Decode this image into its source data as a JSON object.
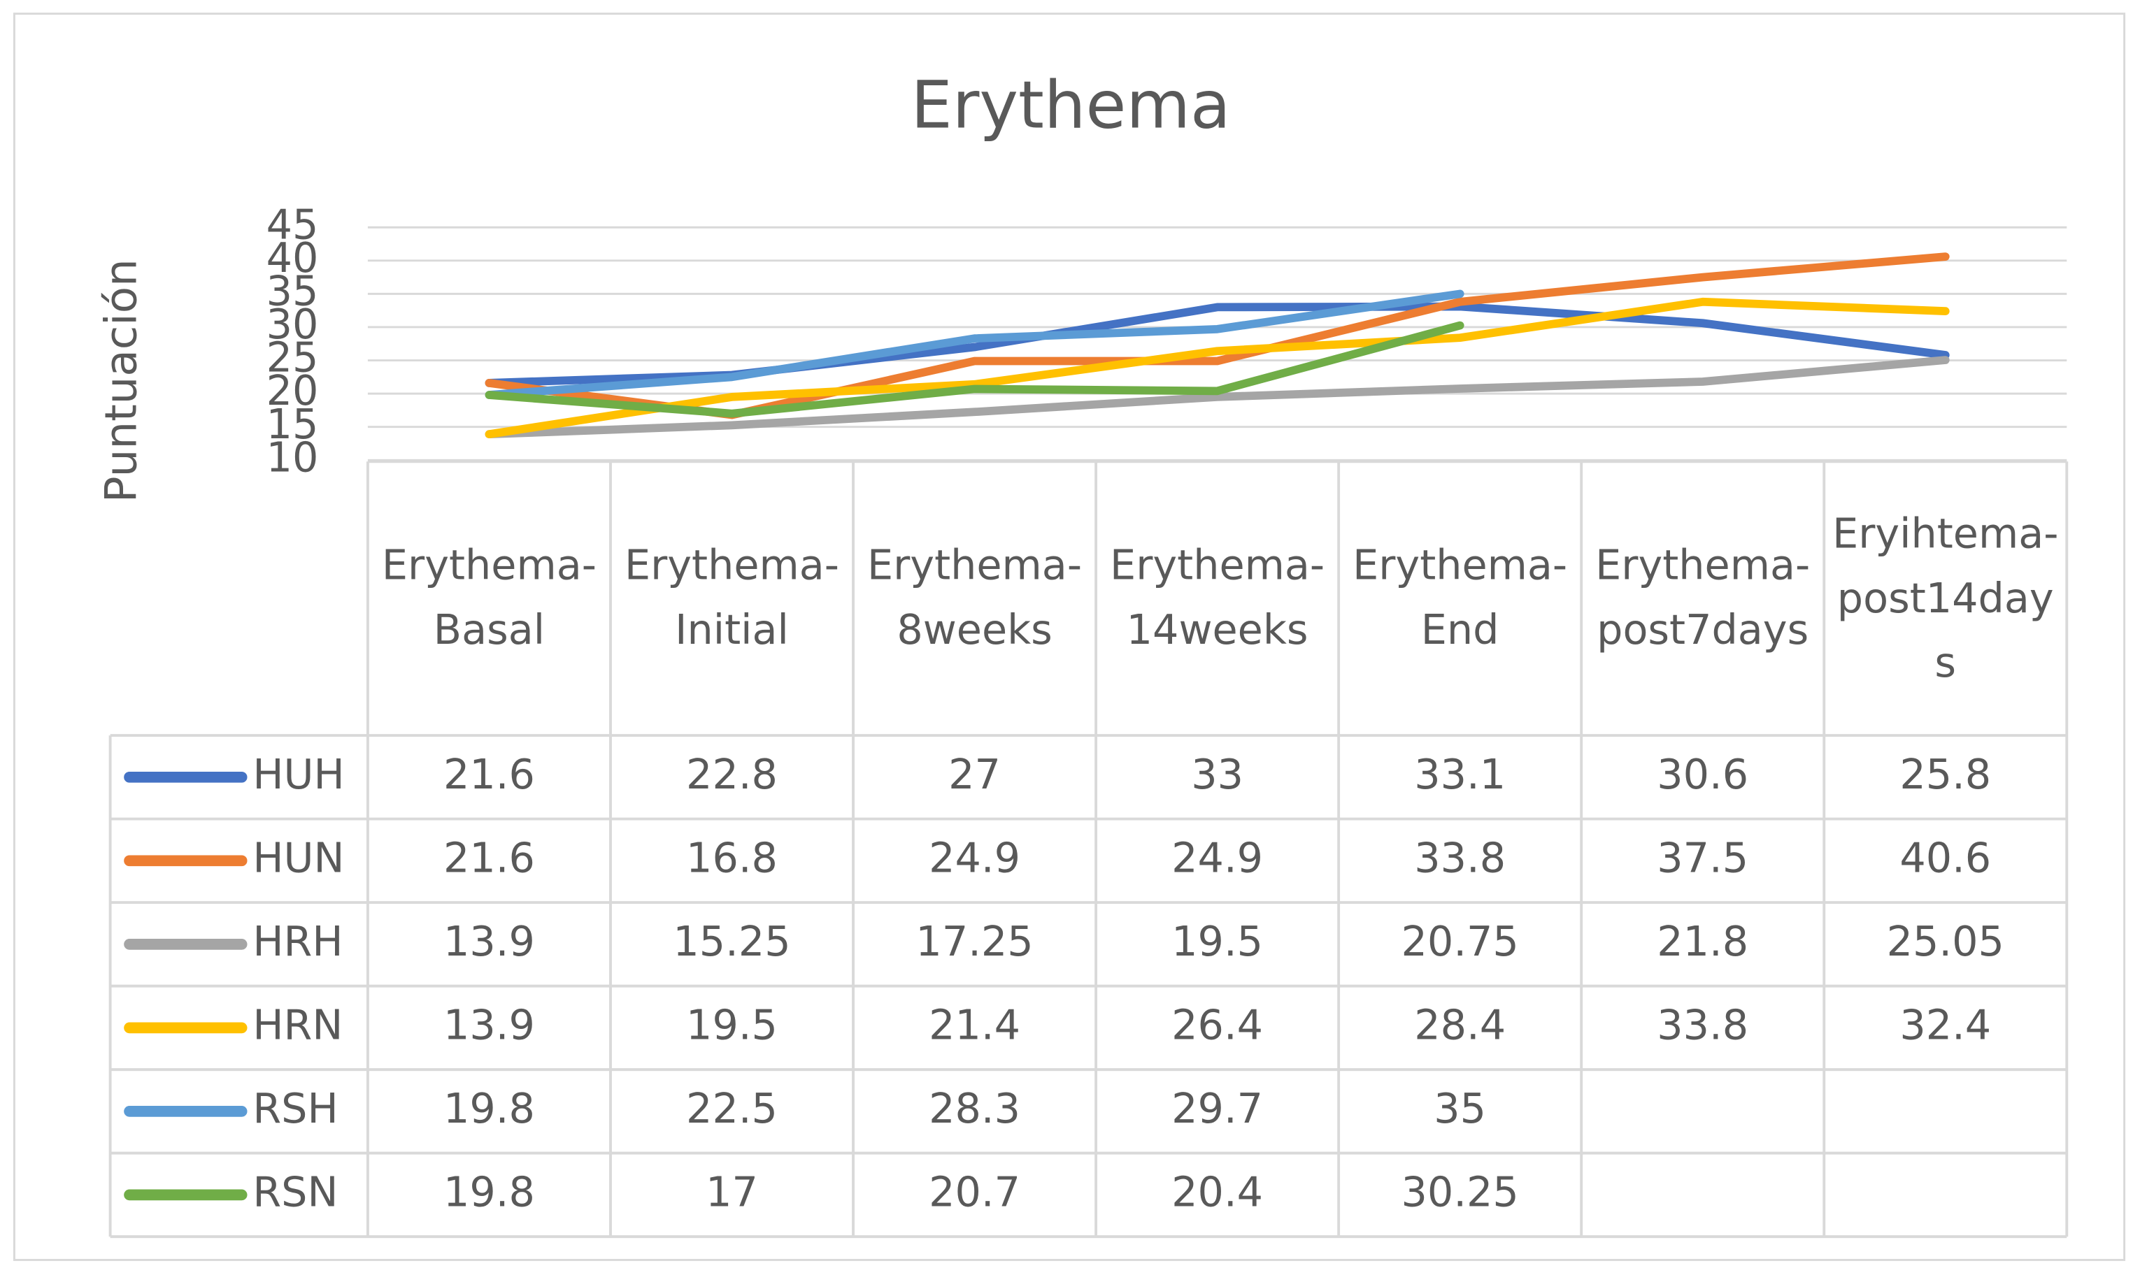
{
  "chart_data": {
    "type": "line",
    "title": "Erythema",
    "y_label": "Puntuación",
    "categories": [
      "Erythema-Basal",
      "Erythema-Initial",
      "Erythema-8weeks",
      "Erythema-14weeks",
      "Erythema-End",
      "Erythema-post7days",
      "Eryihtema-post14days"
    ],
    "series": [
      {
        "name": "HUH",
        "color": "#4472c4",
        "values": [
          21.6,
          22.8,
          27,
          33,
          33.1,
          30.6,
          25.8
        ]
      },
      {
        "name": "HUN",
        "color": "#ed7d31",
        "values": [
          21.6,
          16.8,
          24.9,
          24.9,
          33.8,
          37.5,
          40.6
        ]
      },
      {
        "name": "HRH",
        "color": "#a5a5a5",
        "values": [
          13.9,
          15.25,
          17.25,
          19.5,
          20.75,
          21.8,
          25.05
        ]
      },
      {
        "name": "HRN",
        "color": "#ffc000",
        "values": [
          13.9,
          19.5,
          21.4,
          26.4,
          28.4,
          33.8,
          32.4
        ]
      },
      {
        "name": "RSH",
        "color": "#5b9bd5",
        "values": [
          19.8,
          22.5,
          28.3,
          29.7,
          35,
          null,
          null
        ]
      },
      {
        "name": "RSN",
        "color": "#70ad47",
        "values": [
          19.8,
          17,
          20.7,
          20.4,
          30.25,
          null,
          null
        ]
      }
    ],
    "ylim": [
      10,
      45
    ],
    "yticks": [
      10,
      15,
      20,
      25,
      30,
      35,
      40,
      45
    ],
    "grid": true
  }
}
